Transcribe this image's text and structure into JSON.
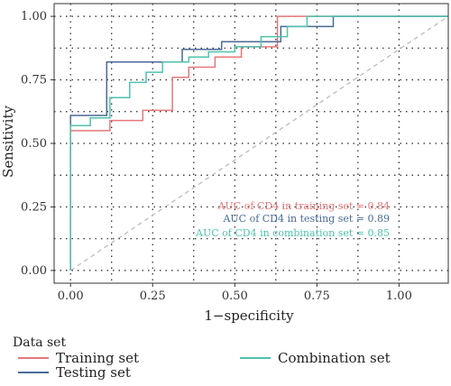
{
  "chart_data": {
    "type": "line",
    "xlabel": "1−specificity",
    "ylabel": "Sensitivity",
    "xlim": [
      -0.05,
      1.15
    ],
    "ylim": [
      -0.05,
      1.05
    ],
    "x_ticks": [
      "0.00",
      "0.25",
      "0.50",
      "0.75",
      "1.00"
    ],
    "y_ticks": [
      "0.00",
      "0.25",
      "0.50",
      "0.75",
      "1.00"
    ],
    "grid": true,
    "legend_title": "Data set",
    "legend_placement": "bottom",
    "reference_line": true,
    "series": [
      {
        "name": "Training set",
        "color": "#e8777a",
        "auc_label": "AUC of CD4 in training set = 0.84",
        "points": [
          [
            0,
            0
          ],
          [
            0,
            0.55
          ],
          [
            0.12,
            0.55
          ],
          [
            0.12,
            0.59
          ],
          [
            0.22,
            0.59
          ],
          [
            0.22,
            0.63
          ],
          [
            0.31,
            0.63
          ],
          [
            0.31,
            0.76
          ],
          [
            0.36,
            0.76
          ],
          [
            0.36,
            0.8
          ],
          [
            0.44,
            0.8
          ],
          [
            0.44,
            0.84
          ],
          [
            0.52,
            0.84
          ],
          [
            0.52,
            0.88
          ],
          [
            0.63,
            0.88
          ],
          [
            0.63,
            1.0
          ],
          [
            1.15,
            1.0
          ]
        ]
      },
      {
        "name": "Testing set",
        "color": "#4a6a96",
        "auc_label": "AUC of CD4 in testing set = 0.89",
        "points": [
          [
            0,
            0
          ],
          [
            0,
            0.61
          ],
          [
            0.11,
            0.61
          ],
          [
            0.11,
            0.82
          ],
          [
            0.34,
            0.82
          ],
          [
            0.34,
            0.87
          ],
          [
            0.46,
            0.87
          ],
          [
            0.46,
            0.9
          ],
          [
            0.64,
            0.9
          ],
          [
            0.64,
            0.96
          ],
          [
            0.8,
            0.96
          ],
          [
            0.8,
            1.0
          ],
          [
            1.15,
            1.0
          ]
        ]
      },
      {
        "name": "Combination set",
        "color": "#4fc2ad",
        "auc_label": "AUC of CD4 in combination set = 0.85",
        "points": [
          [
            0,
            0
          ],
          [
            0,
            0.57
          ],
          [
            0.06,
            0.57
          ],
          [
            0.06,
            0.6
          ],
          [
            0.12,
            0.6
          ],
          [
            0.12,
            0.68
          ],
          [
            0.18,
            0.68
          ],
          [
            0.18,
            0.74
          ],
          [
            0.23,
            0.74
          ],
          [
            0.23,
            0.78
          ],
          [
            0.28,
            0.78
          ],
          [
            0.28,
            0.82
          ],
          [
            0.36,
            0.82
          ],
          [
            0.36,
            0.84
          ],
          [
            0.42,
            0.84
          ],
          [
            0.42,
            0.86
          ],
          [
            0.5,
            0.86
          ],
          [
            0.5,
            0.88
          ],
          [
            0.58,
            0.88
          ],
          [
            0.58,
            0.92
          ],
          [
            0.66,
            0.92
          ],
          [
            0.66,
            0.96
          ],
          [
            0.72,
            0.96
          ],
          [
            0.72,
            1.0
          ],
          [
            1.15,
            1.0
          ]
        ]
      }
    ]
  }
}
